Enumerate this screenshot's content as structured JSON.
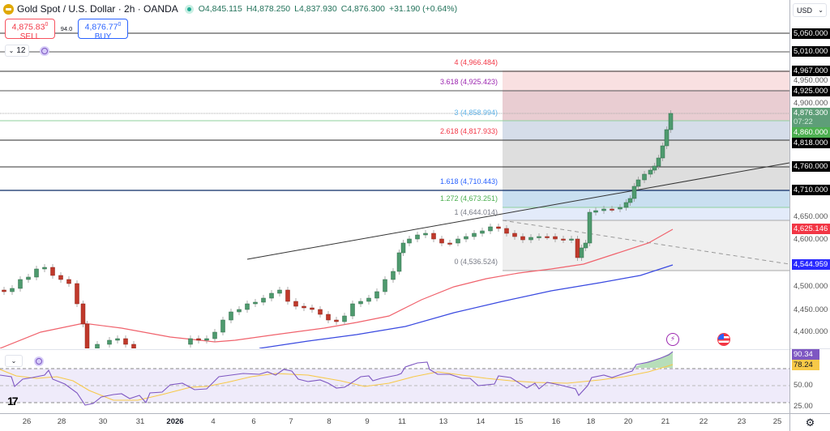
{
  "header": {
    "symbol": "Gold Spot / U.S. Dollar · 2h · OANDA",
    "open": "O4,845.115",
    "high": "H4,878.250",
    "low": "L4,837.930",
    "close": "C4,876.300",
    "change": "+31.190 (+0.64%)"
  },
  "trade": {
    "sell_price": "4,875.83",
    "sell_sup": "0",
    "sell_label": "SELL",
    "spread": "94.0",
    "buy_price": "4,876.77",
    "buy_sup": "0",
    "buy_label": "BUY"
  },
  "legend": {
    "collapse_count": "12"
  },
  "currency": "USD",
  "colors": {
    "up": "#22ab94",
    "down": "#f23645",
    "ma_red": "#f23645",
    "ma_blue": "#2962ff",
    "rsi": "#7e57c2",
    "rsi_ma": "#f7c948"
  },
  "chart_data": {
    "type": "candlestick",
    "title": "Gold Spot / U.S. Dollar · 2h · OANDA",
    "ylim": [
      4350,
      5060
    ],
    "price_axis_ticks": [
      "4,400.000",
      "4,450.000",
      "4,500.000",
      "4,600.000",
      "4,650.000",
      "4,900.000",
      "4,950.000"
    ],
    "x_ticks": [
      "26",
      "28",
      "30",
      "31",
      "2026",
      "4",
      "6",
      "7",
      "8",
      "9",
      "11",
      "13",
      "14",
      "15",
      "16",
      "18",
      "20",
      "21",
      "22",
      "23",
      "25"
    ],
    "horizontal_levels": [
      "5,050.000",
      "5,010.000",
      "4,967.000",
      "4,925.000",
      "4,818.000",
      "4,760.000",
      "4,710.000"
    ],
    "current_price": {
      "value": "4,876.300",
      "countdown": "07:22"
    },
    "level_4860": "4,860.000",
    "ma_red_last": "4,625.146",
    "ma_blue_last": "4,544.959",
    "fib_extension": [
      {
        "ratio": "4",
        "value": "4,966.484",
        "label": "4 (4,966.484)",
        "color": "#f23645"
      },
      {
        "ratio": "3.618",
        "value": "4,925.423",
        "label": "3.618 (4,925.423)",
        "color": "#9c27b0"
      },
      {
        "ratio": "3",
        "value": "4,858.994",
        "label": "3 (4,858.994)",
        "color": "#5fb3e8"
      },
      {
        "ratio": "2.618",
        "value": "4,817.933",
        "label": "2.618 (4,817.933)",
        "color": "#f23645"
      },
      {
        "ratio": "1.618",
        "value": "4,710.443",
        "label": "1.618 (4,710.443)",
        "color": "#2962ff"
      },
      {
        "ratio": "1.272",
        "value": "4,673.251",
        "label": "1.272 (4,673.251)",
        "color": "#4caf50"
      },
      {
        "ratio": "1",
        "value": "4,644.014",
        "label": "1 (4,644.014)",
        "color": "#787b86"
      },
      {
        "ratio": "0",
        "value": "4,536.524",
        "label": "0 (4,536.524)",
        "color": "#787b86"
      }
    ],
    "rsi": {
      "value": "90.34",
      "ma_value": "78.24",
      "ticks": [
        "50.00",
        "25.00"
      ],
      "bands": [
        70,
        50,
        30
      ]
    }
  }
}
